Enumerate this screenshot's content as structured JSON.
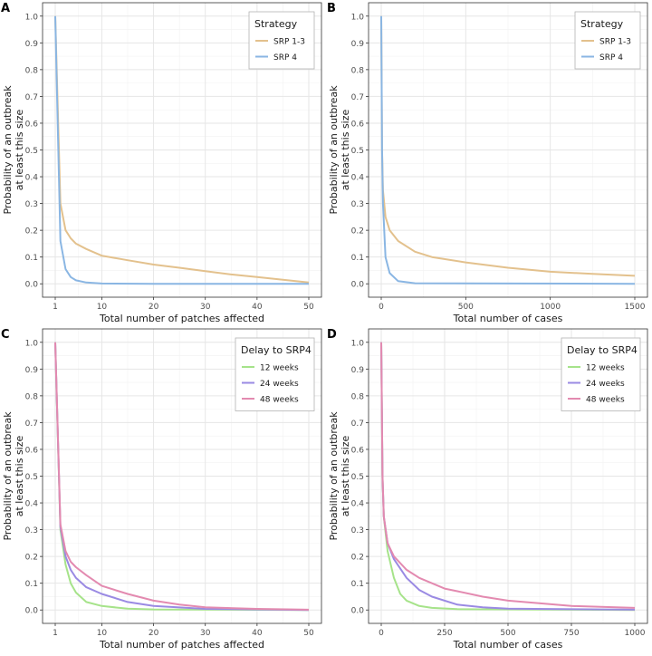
{
  "chart_data": [
    {
      "panel_label": "A",
      "type": "line",
      "xlabel": "Total number of patches affected",
      "ylabel": [
        "Probability of an outbreak",
        "at least this size"
      ],
      "xlim": [
        1,
        50
      ],
      "ylim": [
        0,
        1
      ],
      "xticks": [
        1,
        10,
        20,
        30,
        40,
        50
      ],
      "yticks": [
        0.0,
        0.1,
        0.2,
        0.3,
        0.4,
        0.5,
        0.6,
        0.7,
        0.8,
        0.9,
        1.0
      ],
      "legend": {
        "title": "Strategy",
        "placement": "top-right"
      },
      "series": [
        {
          "name": "SRP 1-3",
          "color": "#E3C18D",
          "x": [
            1,
            2,
            3,
            4,
            5,
            7,
            10,
            15,
            20,
            25,
            30,
            35,
            40,
            45,
            50
          ],
          "y": [
            1,
            0.3,
            0.2,
            0.17,
            0.15,
            0.13,
            0.105,
            0.088,
            0.072,
            0.06,
            0.047,
            0.035,
            0.025,
            0.015,
            0.005
          ]
        },
        {
          "name": "SRP 4",
          "color": "#8AB6E3",
          "x": [
            1,
            2,
            3,
            4,
            5,
            7,
            10,
            20,
            50
          ],
          "y": [
            1,
            0.16,
            0.055,
            0.025,
            0.013,
            0.005,
            0.001,
            0,
            0
          ]
        }
      ]
    },
    {
      "panel_label": "B",
      "type": "line",
      "xlabel": "Total number of cases",
      "ylabel": [
        "Probability of an outbreak",
        "at least this size"
      ],
      "xlim": [
        0,
        1500
      ],
      "ylim": [
        0,
        1
      ],
      "xticks": [
        0,
        500,
        1000,
        1500
      ],
      "yticks": [
        0.0,
        0.1,
        0.2,
        0.3,
        0.4,
        0.5,
        0.6,
        0.7,
        0.8,
        0.9,
        1.0
      ],
      "legend": {
        "title": "Strategy",
        "placement": "top-right"
      },
      "series": [
        {
          "name": "SRP 1-3",
          "color": "#E3C18D",
          "x": [
            0,
            5,
            10,
            25,
            50,
            100,
            200,
            300,
            500,
            750,
            1000,
            1250,
            1500
          ],
          "y": [
            1,
            0.5,
            0.35,
            0.25,
            0.2,
            0.16,
            0.12,
            0.1,
            0.08,
            0.06,
            0.045,
            0.037,
            0.03
          ]
        },
        {
          "name": "SRP 4",
          "color": "#8AB6E3",
          "x": [
            0,
            5,
            10,
            25,
            50,
            100,
            200,
            1500
          ],
          "y": [
            1,
            0.5,
            0.3,
            0.1,
            0.04,
            0.01,
            0.002,
            0
          ]
        }
      ]
    },
    {
      "panel_label": "C",
      "type": "line",
      "xlabel": "Total number of patches affected",
      "ylabel": [
        "Probability of an outbreak",
        "at least this size"
      ],
      "xlim": [
        1,
        50
      ],
      "ylim": [
        0,
        1
      ],
      "xticks": [
        1,
        10,
        20,
        30,
        40,
        50
      ],
      "yticks": [
        0.0,
        0.1,
        0.2,
        0.3,
        0.4,
        0.5,
        0.6,
        0.7,
        0.8,
        0.9,
        1.0
      ],
      "legend": {
        "title": "Delay to SRP4",
        "placement": "top-right"
      },
      "series": [
        {
          "name": "12 weeks",
          "color": "#A6E38A",
          "x": [
            1,
            2,
            3,
            4,
            5,
            7,
            10,
            15,
            20,
            50
          ],
          "y": [
            1,
            0.3,
            0.17,
            0.1,
            0.065,
            0.03,
            0.015,
            0.005,
            0.002,
            0
          ]
        },
        {
          "name": "24 weeks",
          "color": "#9A8AE3",
          "x": [
            1,
            2,
            3,
            4,
            5,
            7,
            10,
            15,
            20,
            30,
            50
          ],
          "y": [
            1,
            0.31,
            0.2,
            0.15,
            0.12,
            0.085,
            0.06,
            0.03,
            0.015,
            0.004,
            0
          ]
        },
        {
          "name": "48 weeks",
          "color": "#E38AB0",
          "x": [
            1,
            2,
            3,
            4,
            5,
            7,
            10,
            15,
            20,
            25,
            30,
            40,
            50
          ],
          "y": [
            1,
            0.32,
            0.22,
            0.18,
            0.16,
            0.13,
            0.09,
            0.06,
            0.035,
            0.02,
            0.01,
            0.004,
            0.001
          ]
        }
      ]
    },
    {
      "panel_label": "D",
      "type": "line",
      "xlabel": "Total number of cases",
      "ylabel": [
        "Probability of an outbreak",
        "at least this size"
      ],
      "xlim": [
        0,
        1000
      ],
      "ylim": [
        0,
        1
      ],
      "xticks": [
        0,
        250,
        500,
        750,
        1000
      ],
      "yticks": [
        0.0,
        0.1,
        0.2,
        0.3,
        0.4,
        0.5,
        0.6,
        0.7,
        0.8,
        0.9,
        1.0
      ],
      "legend": {
        "title": "Delay to SRP4",
        "placement": "top-right"
      },
      "series": [
        {
          "name": "12 weeks",
          "color": "#A6E38A",
          "x": [
            0,
            5,
            10,
            25,
            50,
            75,
            100,
            150,
            200,
            300,
            1000
          ],
          "y": [
            1,
            0.5,
            0.35,
            0.22,
            0.12,
            0.06,
            0.035,
            0.015,
            0.008,
            0.003,
            0
          ]
        },
        {
          "name": "24 weeks",
          "color": "#9A8AE3",
          "x": [
            0,
            5,
            10,
            25,
            50,
            100,
            150,
            200,
            300,
            400,
            500,
            1000
          ],
          "y": [
            1,
            0.5,
            0.35,
            0.25,
            0.19,
            0.12,
            0.075,
            0.05,
            0.02,
            0.01,
            0.005,
            0.001
          ]
        },
        {
          "name": "48 weeks",
          "color": "#E38AB0",
          "x": [
            0,
            5,
            10,
            25,
            50,
            100,
            150,
            200,
            250,
            300,
            400,
            500,
            750,
            1000
          ],
          "y": [
            1,
            0.5,
            0.35,
            0.25,
            0.2,
            0.15,
            0.12,
            0.1,
            0.08,
            0.07,
            0.05,
            0.035,
            0.015,
            0.008
          ]
        }
      ]
    }
  ]
}
